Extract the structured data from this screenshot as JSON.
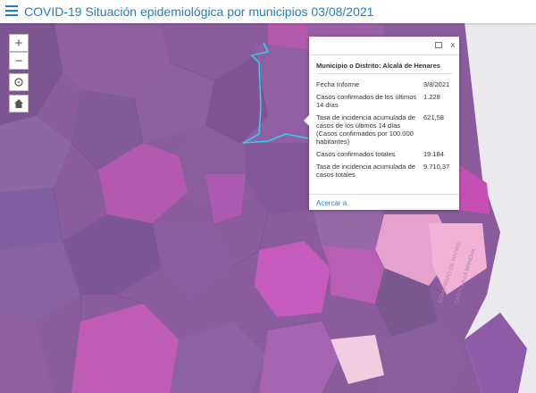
{
  "header": {
    "title": "COVID-19 Situación epidemiológica por municipios 03/08/2021"
  },
  "controls": {
    "zoom_in": "+",
    "zoom_out": "−"
  },
  "popup": {
    "close": "x",
    "title": "Municipio o Distrito: Alcalá de Henares",
    "rows": [
      [
        "Fecha Informe",
        "3/8/2021"
      ],
      [
        "Casos confirmados de los últimos 14 días",
        "1.228"
      ],
      [
        "Tasa de incidencia acumulada de casos de los últimos 14 días (Casos confirmados por 100.000 habitantes)",
        "621,58"
      ],
      [
        "Casos confirmados totales",
        "19.184"
      ],
      [
        "Tasa de incidencia acumulada de casos totales",
        "9.710,37"
      ]
    ],
    "link": "Acercar a"
  },
  "map_labels": [
    "COMUNIDAD DE MADRID",
    "CASTILLA-LA MANCHA"
  ]
}
